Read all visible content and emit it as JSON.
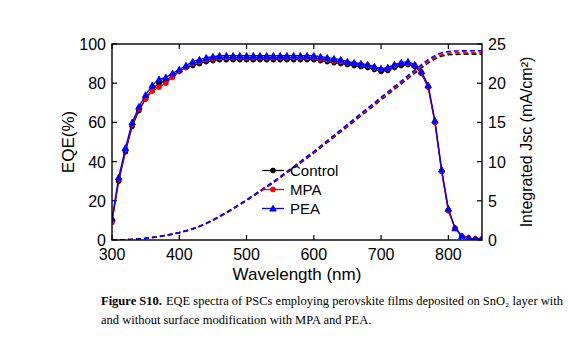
{
  "chart_data": {
    "type": "line",
    "xlabel": "Wavelength (nm)",
    "ylabel": "EQE(%)",
    "y2label": "Integrated Jsc (mA/cm²)",
    "x": [
      300,
      310,
      320,
      330,
      340,
      350,
      360,
      370,
      380,
      390,
      400,
      410,
      420,
      430,
      440,
      450,
      460,
      470,
      480,
      490,
      500,
      510,
      520,
      530,
      540,
      550,
      560,
      570,
      580,
      590,
      600,
      610,
      620,
      630,
      640,
      650,
      660,
      670,
      680,
      690,
      700,
      710,
      720,
      730,
      740,
      750,
      760,
      770,
      780,
      790,
      800,
      810,
      820,
      830,
      840,
      850
    ],
    "xlim": [
      300,
      850
    ],
    "xticks": [
      300,
      400,
      500,
      600,
      700,
      800
    ],
    "ylim": [
      0,
      100
    ],
    "yticks": [
      0,
      20,
      40,
      60,
      80,
      100
    ],
    "y2lim": [
      0,
      25
    ],
    "y2ticks": [
      0,
      5,
      10,
      15,
      20,
      25
    ],
    "legend": "lower center",
    "series": [
      {
        "name": "Control",
        "color": "#000000",
        "marker": "circle",
        "line_style": "solid",
        "values": [
          10,
          30,
          45,
          58,
          66,
          72,
          77,
          80,
          81,
          84,
          86,
          88,
          89,
          90,
          91,
          91.5,
          92,
          92,
          92,
          92,
          92,
          92,
          92,
          92,
          92,
          92,
          92,
          92,
          92,
          92,
          92,
          91.5,
          91,
          90.5,
          90,
          89.5,
          89,
          88.5,
          88,
          87,
          86,
          86.5,
          88,
          89,
          89.5,
          88.5,
          85,
          78,
          60,
          35,
          15,
          6,
          2,
          1,
          0.5,
          0.5
        ]
      },
      {
        "name": "MPA",
        "color": "#ff0000",
        "marker": "circle",
        "line_style": "solid",
        "values": [
          9,
          31,
          46,
          59,
          67,
          72,
          76,
          78,
          80,
          83,
          86,
          88,
          90,
          91,
          92,
          92.5,
          93,
          93,
          93,
          93,
          93,
          93,
          93,
          93,
          93,
          93,
          93,
          93,
          93,
          93,
          93,
          92.5,
          92,
          91.5,
          91,
          90.5,
          90,
          89.5,
          89,
          88,
          87,
          87.5,
          89,
          90,
          90,
          89,
          85.5,
          78,
          60,
          35,
          15,
          6,
          2,
          1,
          0.5,
          0.5
        ]
      },
      {
        "name": "PEA",
        "color": "#0000ff",
        "marker": "triangle",
        "line_style": "solid",
        "values": [
          11,
          32,
          47,
          60,
          68,
          74,
          79,
          82,
          83,
          85,
          87,
          89,
          91,
          92,
          93,
          93.5,
          94,
          94,
          94,
          94,
          94,
          94,
          94,
          94,
          94,
          94,
          94,
          94,
          94,
          94,
          94,
          93.5,
          93,
          92.5,
          92,
          91,
          90.5,
          90,
          89.5,
          88.5,
          87.5,
          88,
          89.5,
          90.5,
          91,
          89.5,
          86,
          79,
          61,
          36,
          16,
          6,
          2,
          1,
          0.5,
          0.5
        ]
      },
      {
        "color": "#000000",
        "marker": "none",
        "line_style": "dashed",
        "axis": "y2",
        "values": [
          0,
          0.01,
          0.03,
          0.07,
          0.14,
          0.21,
          0.31,
          0.44,
          0.59,
          0.75,
          0.94,
          1.15,
          1.41,
          1.72,
          2.09,
          2.51,
          2.98,
          3.45,
          3.97,
          4.49,
          5.02,
          5.59,
          6.17,
          6.74,
          7.32,
          7.94,
          8.57,
          9.2,
          9.82,
          10.45,
          11.08,
          11.76,
          12.44,
          13.11,
          13.79,
          14.47,
          15.15,
          15.83,
          16.51,
          17.19,
          17.87,
          18.55,
          19.23,
          19.91,
          20.59,
          21.27,
          21.95,
          22.58,
          23.09,
          23.46,
          23.62,
          23.68,
          23.7,
          23.71,
          23.71,
          23.71
        ]
      },
      {
        "color": "#ff0000",
        "marker": "none",
        "line_style": "dashed",
        "axis": "y2",
        "values": [
          0,
          0.01,
          0.03,
          0.07,
          0.14,
          0.21,
          0.31,
          0.44,
          0.59,
          0.75,
          0.94,
          1.16,
          1.42,
          1.74,
          2.11,
          2.53,
          3.01,
          3.48,
          4.0,
          4.53,
          5.06,
          5.64,
          6.22,
          6.8,
          7.38,
          8.01,
          8.64,
          9.28,
          9.91,
          10.54,
          11.18,
          11.86,
          12.55,
          13.23,
          13.91,
          14.6,
          15.28,
          15.97,
          16.65,
          17.34,
          18.03,
          18.71,
          19.4,
          20.08,
          20.77,
          21.46,
          22.14,
          22.77,
          23.28,
          23.65,
          23.81,
          23.87,
          23.89,
          23.9,
          23.9,
          23.9
        ]
      },
      {
        "color": "#0000ff",
        "marker": "none",
        "line_style": "dashed",
        "axis": "y2",
        "values": [
          0,
          0.01,
          0.03,
          0.07,
          0.14,
          0.21,
          0.31,
          0.45,
          0.6,
          0.76,
          0.95,
          1.17,
          1.43,
          1.75,
          2.13,
          2.56,
          3.04,
          3.52,
          4.04,
          4.58,
          5.12,
          5.7,
          6.29,
          6.87,
          7.46,
          8.09,
          8.73,
          9.37,
          10.01,
          10.65,
          11.29,
          11.98,
          12.67,
          13.36,
          14.05,
          14.74,
          15.43,
          16.12,
          16.81,
          17.5,
          18.2,
          18.89,
          19.59,
          20.28,
          20.98,
          21.67,
          22.36,
          23.0,
          23.51,
          23.88,
          24.04,
          24.1,
          24.12,
          24.13,
          24.13,
          24.13
        ]
      }
    ]
  },
  "caption": {
    "label": "Figure S10.",
    "lines": [
      "EQE spectra of PSCs employing perovskite films deposited on SnO₂ layer with",
      "and without surface modification with MPA and PEA."
    ]
  }
}
